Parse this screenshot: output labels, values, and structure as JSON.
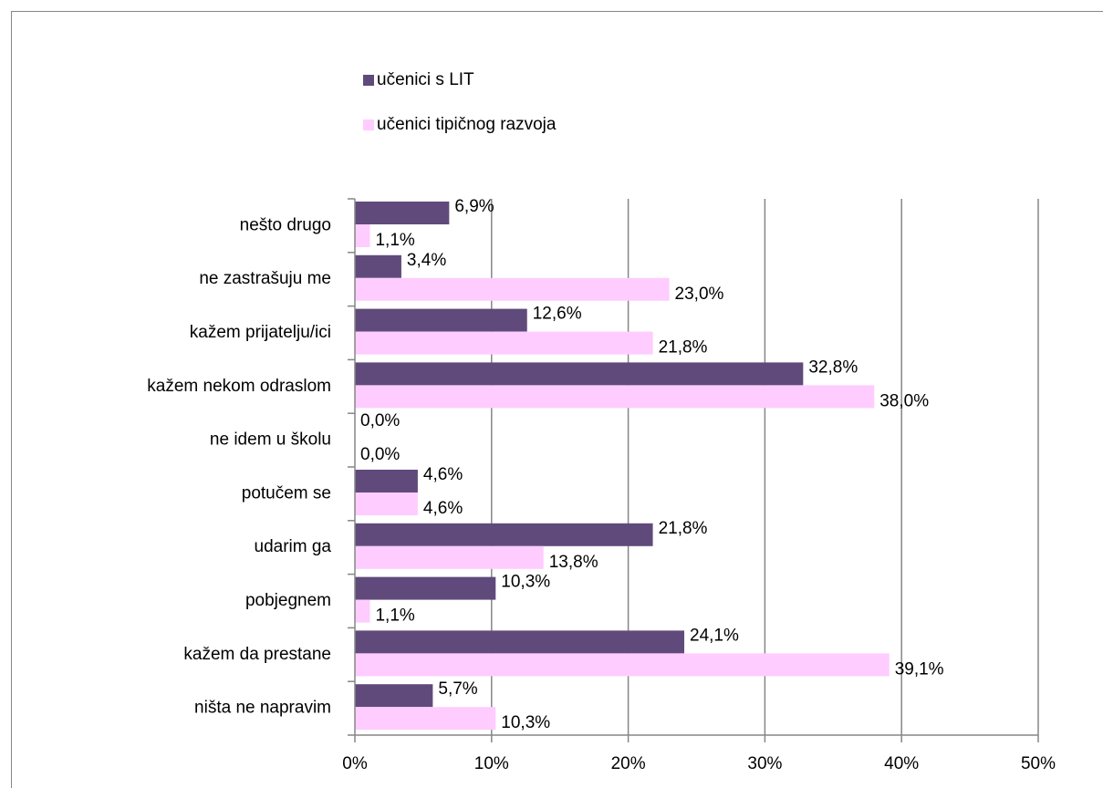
{
  "chart_data": {
    "type": "bar",
    "orientation": "horizontal",
    "categories": [
      "nešto drugo",
      "ne zastrašuju me",
      "kažem prijatelju/ici",
      "kažem nekom odraslom",
      "ne idem u školu",
      "potučem se",
      "udarim ga",
      "pobjegnem",
      "kažem da prestane",
      "ništa ne napravim"
    ],
    "series": [
      {
        "name": "učenici  s LIT",
        "color": "#604a7b",
        "values": [
          6.9,
          3.4,
          12.6,
          32.8,
          0.0,
          4.6,
          21.8,
          10.3,
          24.1,
          5.7
        ],
        "value_labels": [
          "6,9%",
          "3,4%",
          "12,6%",
          "32,8%",
          "0,0%",
          "4,6%",
          "21,8%",
          "10,3%",
          "24,1%",
          "5,7%"
        ]
      },
      {
        "name": "učenici tipičnog razvoja",
        "color": "#ffccff",
        "values": [
          1.1,
          23.0,
          21.8,
          38.0,
          0.0,
          4.6,
          13.8,
          1.1,
          39.1,
          10.3
        ],
        "value_labels": [
          "1,1%",
          "23,0%",
          "21,8%",
          "38,0%",
          "0,0%",
          "4,6%",
          "13,8%",
          "1,1%",
          "39,1%",
          "10,3%"
        ]
      }
    ],
    "xlim": [
      0,
      50
    ],
    "xticks": [
      {
        "value": 0,
        "label": "0%"
      },
      {
        "value": 10,
        "label": "10%"
      },
      {
        "value": 20,
        "label": "20%"
      },
      {
        "value": 30,
        "label": "30%"
      },
      {
        "value": 40,
        "label": "40%"
      },
      {
        "value": 50,
        "label": "50%"
      }
    ],
    "grid": true,
    "legend": "top"
  }
}
